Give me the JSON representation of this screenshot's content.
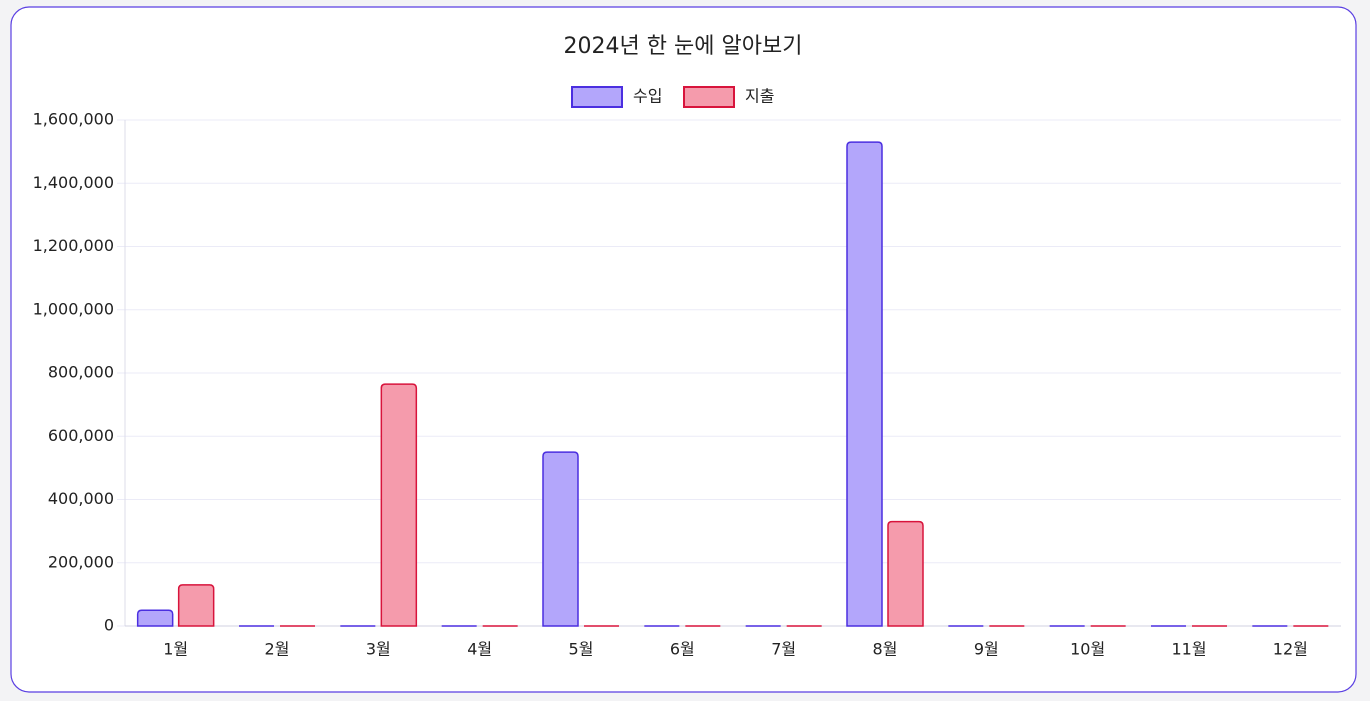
{
  "chart_data": {
    "type": "bar",
    "title": "2024년 한 눈에 알아보기",
    "categories": [
      "1월",
      "2월",
      "3월",
      "4월",
      "5월",
      "6월",
      "7월",
      "8월",
      "9월",
      "10월",
      "11월",
      "12월"
    ],
    "series": [
      {
        "name": "수입",
        "color": "#b3a6fb",
        "edge_color": "#4b2fe0",
        "values": [
          50000,
          0,
          0,
          0,
          550000,
          0,
          0,
          1530000,
          0,
          0,
          0,
          0
        ]
      },
      {
        "name": "지출",
        "color": "#f59bac",
        "edge_color": "#d8143c",
        "values": [
          130000,
          0,
          765000,
          0,
          0,
          0,
          0,
          330000,
          0,
          0,
          0,
          0
        ]
      }
    ],
    "ylim": [
      0,
      1600000
    ],
    "yticks": [
      0,
      {
        "value": 200000,
        "label": "200,000"
      },
      {
        "value": 400000,
        "label": "400,000"
      },
      {
        "value": 600000,
        "label": "600,000"
      },
      {
        "value": 800000,
        "label": "800,000"
      },
      {
        "value": 1000000,
        "label": "1,000,000"
      },
      {
        "value": 1200000,
        "label": "1,200,000"
      },
      {
        "value": 1400000,
        "label": "1,400,000"
      },
      {
        "value": 1600000,
        "label": "1,600,000"
      }
    ],
    "grid": true,
    "legend": "top"
  }
}
